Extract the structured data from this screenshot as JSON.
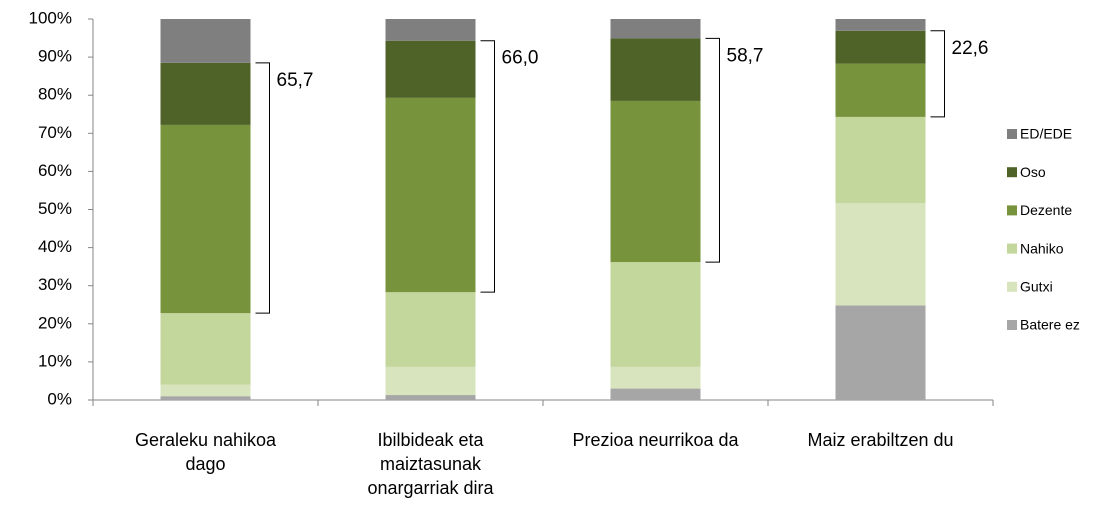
{
  "chart_data": {
    "type": "stacked_bar_100",
    "categories": [
      "Geraleku nahikoa dago",
      "Ibilbideak eta maiztasunak onargarriak dira",
      "Prezioa neurrikoa da",
      "Maiz erabiltzen du"
    ],
    "series": [
      {
        "name": "Batere ez",
        "color": "#a6a6a6",
        "values": [
          1.0,
          1.3,
          3.0,
          24.8
        ]
      },
      {
        "name": "Gutxi",
        "color": "#d7e4bd",
        "values": [
          3.0,
          7.4,
          5.7,
          26.9
        ]
      },
      {
        "name": "Nahiko",
        "color": "#c3d69b",
        "values": [
          18.8,
          19.6,
          27.5,
          22.6
        ]
      },
      {
        "name": "Dezente",
        "color": "#77933c",
        "values": [
          49.4,
          51.0,
          42.3,
          14.0
        ]
      },
      {
        "name": "Oso",
        "color": "#4f6228",
        "values": [
          16.3,
          15.0,
          16.4,
          8.6
        ]
      },
      {
        "name": "ED/EDE",
        "color": "#7f7f7f",
        "values": [
          11.5,
          5.7,
          5.1,
          3.1
        ]
      }
    ],
    "brackets": {
      "values": [
        65.7,
        66.0,
        58.7,
        22.6
      ],
      "value_labels": [
        "65,7",
        "66,0",
        "58,7",
        "22,6"
      ]
    },
    "ylim": [
      0,
      100
    ],
    "yticks": [
      {
        "value": 0,
        "label": "0%"
      },
      {
        "value": 10,
        "label": "10%"
      },
      {
        "value": 20,
        "label": "20%"
      },
      {
        "value": 30,
        "label": "30%"
      },
      {
        "value": 40,
        "label": "40%"
      },
      {
        "value": 50,
        "label": "50%"
      },
      {
        "value": 60,
        "label": "60%"
      },
      {
        "value": 70,
        "label": "70%"
      },
      {
        "value": 80,
        "label": "80%"
      },
      {
        "value": 90,
        "label": "90%"
      },
      {
        "value": 100,
        "label": "100%"
      }
    ],
    "legend": "right"
  }
}
